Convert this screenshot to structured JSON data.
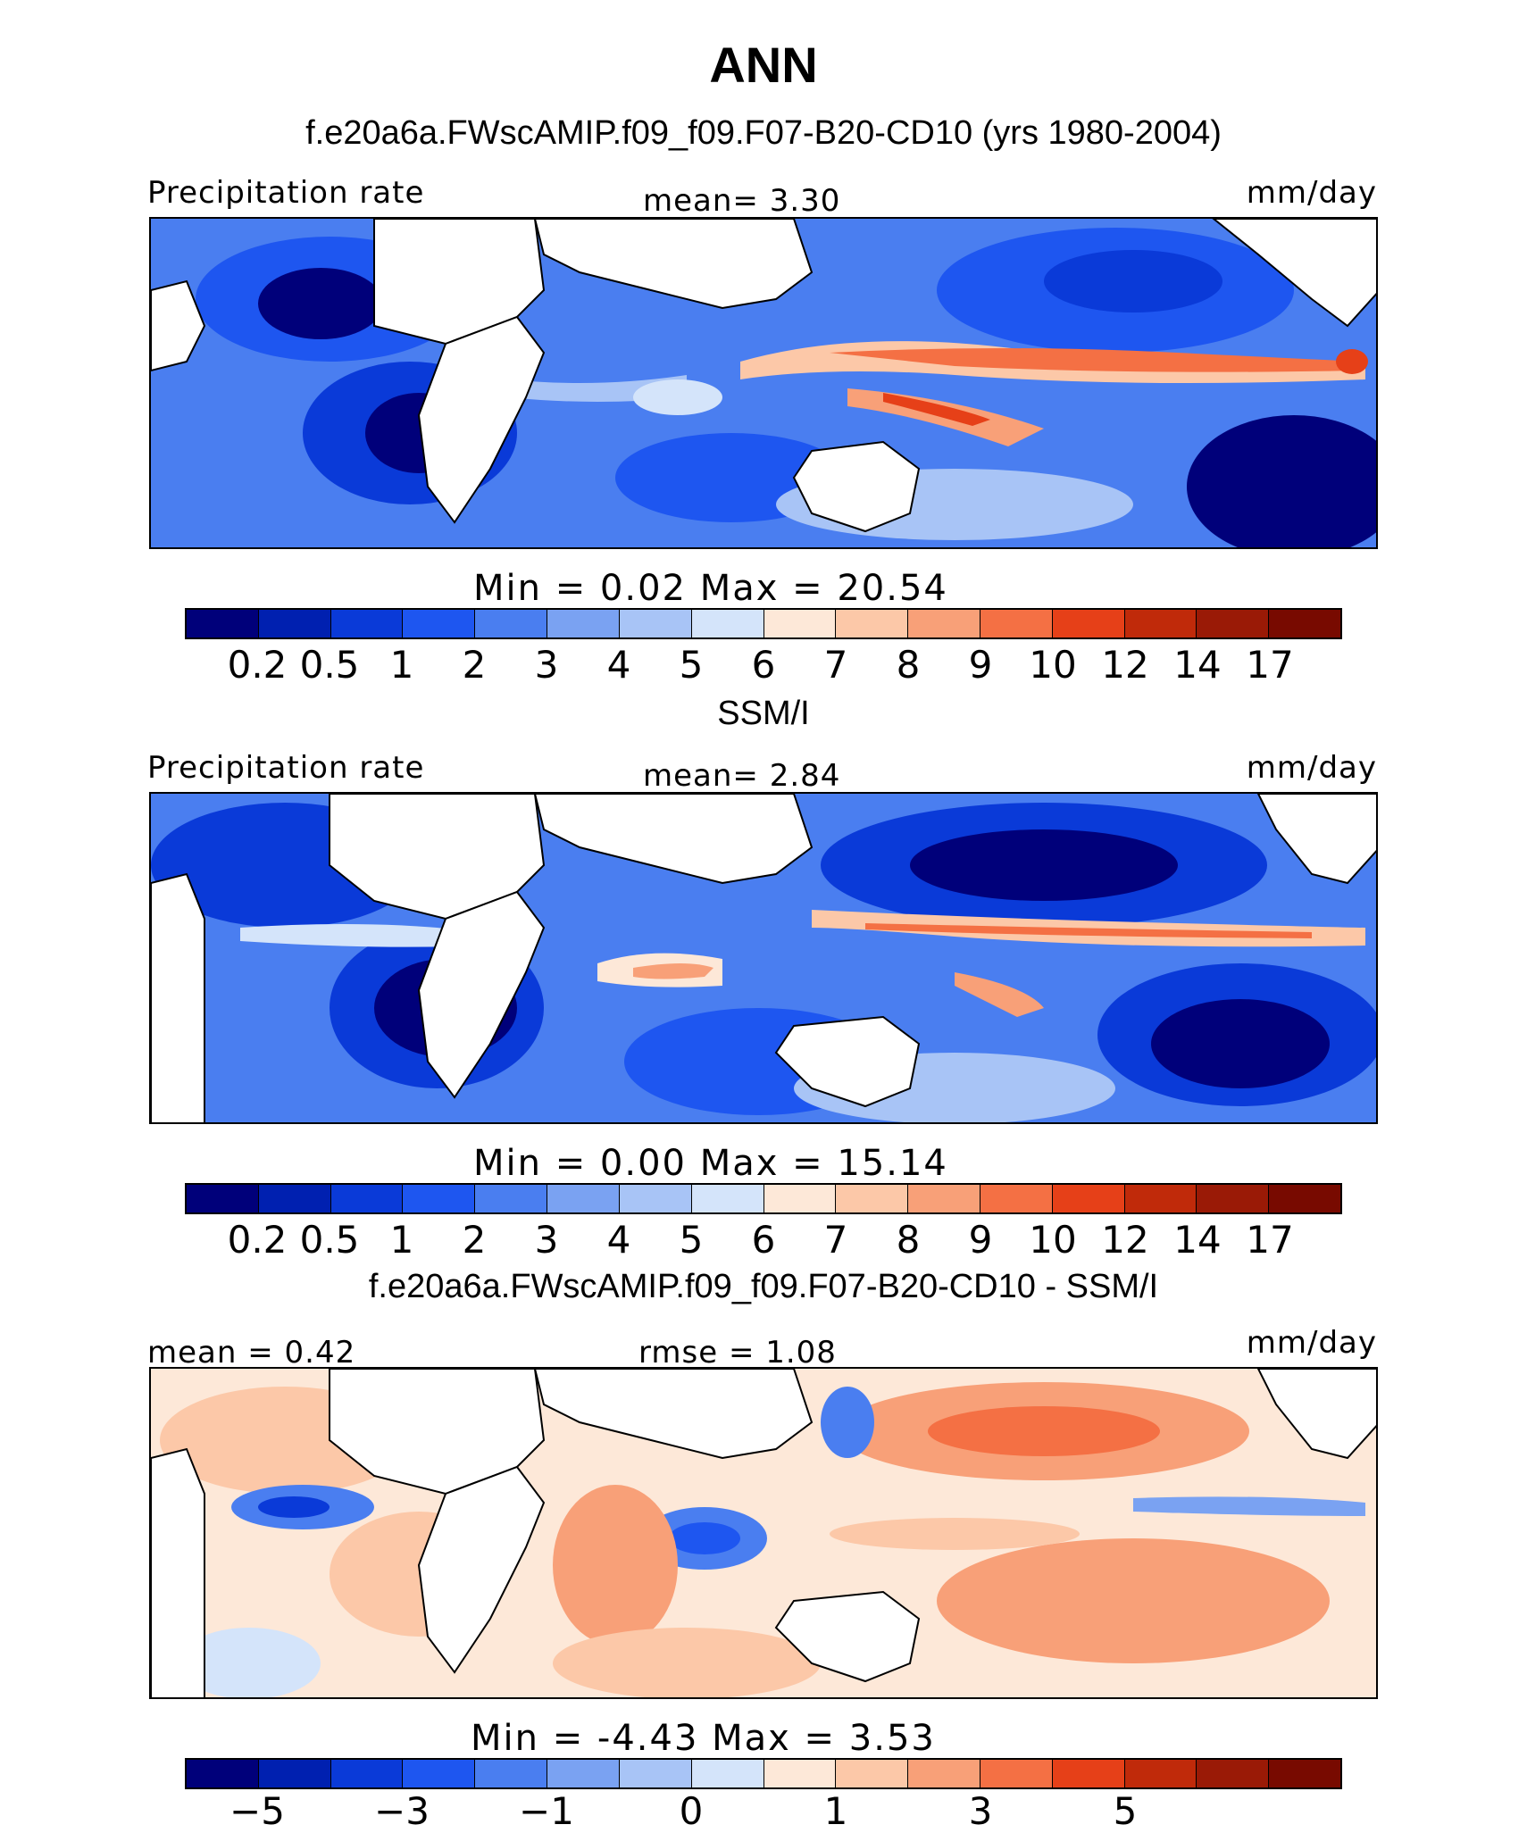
{
  "title": "ANN",
  "chart_data": [
    {
      "type": "heatmap",
      "title": "f.e20a6a.FWscAMIP.f09_f09.F07-B20-CD10 (yrs 1980-2004)",
      "left_label": "Precipitation rate",
      "center_label": "mean=   3.30",
      "right_label": "mm/day",
      "stats": "Min =    0.02  Max =   20.54",
      "min": 0.02,
      "max": 20.54,
      "mean": 3.3,
      "units": "mm/day",
      "colorbar_ticks": [
        "0.2",
        "0.5",
        "1",
        "2",
        "3",
        "4",
        "5",
        "6",
        "7",
        "8",
        "9",
        "10",
        "12",
        "14",
        "17"
      ],
      "colorbar_colors": [
        "#00007a",
        "#0020b0",
        "#0a3ad8",
        "#1e56f0",
        "#4a7ef0",
        "#7aa2f2",
        "#a8c4f6",
        "#d4e4fa",
        "#fde8d8",
        "#fcc8a8",
        "#f8a078",
        "#f47044",
        "#e64018",
        "#c02a0a",
        "#9a1a06",
        "#780a00"
      ]
    },
    {
      "type": "heatmap",
      "title": "SSM/I",
      "left_label": "Precipitation rate",
      "center_label": "mean=   2.84",
      "right_label": "mm/day",
      "stats": "Min =    0.00  Max =   15.14",
      "min": 0.0,
      "max": 15.14,
      "mean": 2.84,
      "units": "mm/day",
      "colorbar_ticks": [
        "0.2",
        "0.5",
        "1",
        "2",
        "3",
        "4",
        "5",
        "6",
        "7",
        "8",
        "9",
        "10",
        "12",
        "14",
        "17"
      ],
      "colorbar_colors": [
        "#00007a",
        "#0020b0",
        "#0a3ad8",
        "#1e56f0",
        "#4a7ef0",
        "#7aa2f2",
        "#a8c4f6",
        "#d4e4fa",
        "#fde8d8",
        "#fcc8a8",
        "#f8a078",
        "#f47044",
        "#e64018",
        "#c02a0a",
        "#9a1a06",
        "#780a00"
      ]
    },
    {
      "type": "heatmap",
      "title": "f.e20a6a.FWscAMIP.f09_f09.F07-B20-CD10 - SSM/I",
      "left_label": "mean =   0.42",
      "center_label": "rmse =   1.08",
      "right_label": "mm/day",
      "stats": "Min =  -4.43  Max =    3.53",
      "min": -4.43,
      "max": 3.53,
      "mean": 0.42,
      "rmse": 1.08,
      "units": "mm/day",
      "colorbar_ticks": [
        "-5",
        "",
        "-3",
        "",
        "-1",
        "",
        "0",
        "",
        "1",
        "",
        "3",
        "",
        "5",
        ""
      ],
      "colorbar_colors": [
        "#00007a",
        "#0020b0",
        "#0a3ad8",
        "#1e56f0",
        "#4a7ef0",
        "#7aa2f2",
        "#a8c4f6",
        "#d4e4fa",
        "#fde8d8",
        "#fcc8a8",
        "#f8a078",
        "#f47044",
        "#e64018",
        "#c02a0a",
        "#9a1a06",
        "#780a00"
      ]
    }
  ]
}
